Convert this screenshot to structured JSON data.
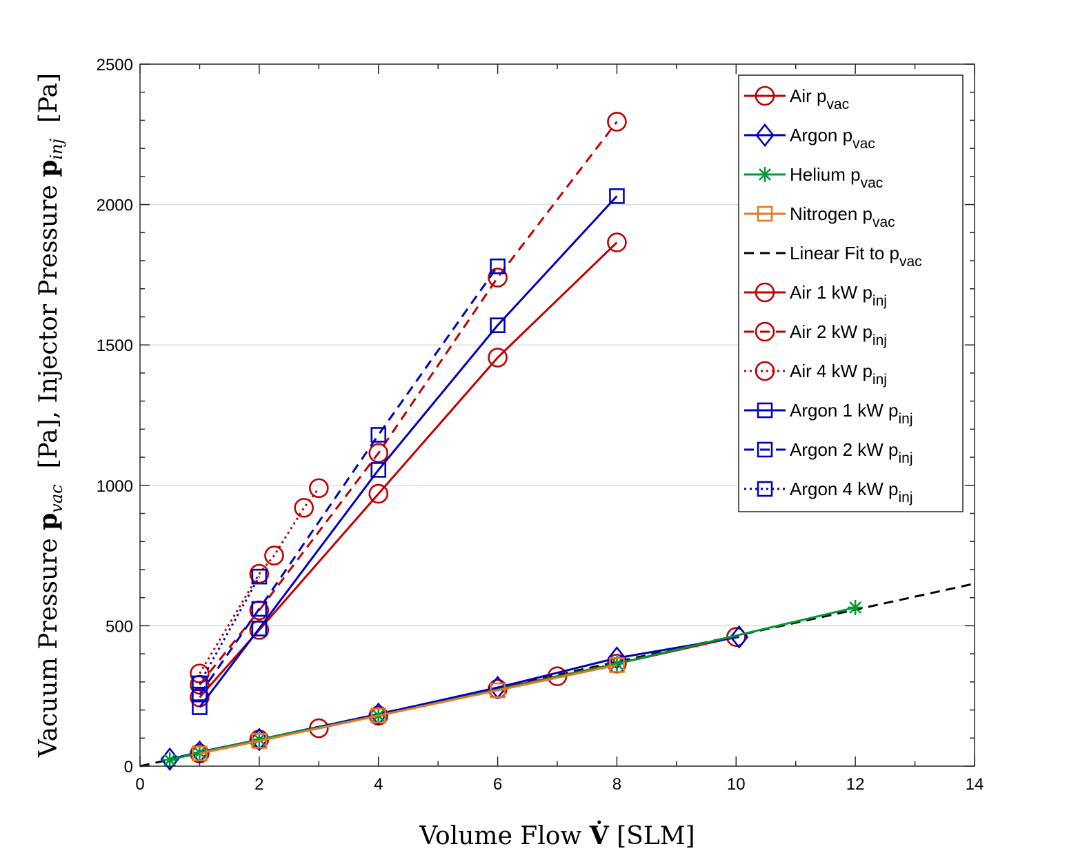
{
  "chart_data": {
    "type": "line",
    "xlabel": "Volume Flow V̇ [SLM]",
    "ylabel": "Vacuum Pressure p_vac [Pa], Injector Pressure p_inj [Pa]",
    "xlim": [
      0,
      14
    ],
    "ylim": [
      0,
      2500
    ],
    "xticks": [
      0,
      2,
      4,
      6,
      8,
      10,
      12,
      14
    ],
    "yticks": [
      0,
      500,
      1000,
      1500,
      2000,
      2500
    ],
    "grid": "horizontal",
    "legend_position": "top-right",
    "series": [
      {
        "name": "Air p",
        "sub": "vac",
        "color": "#c00000",
        "dash": "solid",
        "marker": "circle",
        "x": [
          1,
          2,
          3,
          4,
          6,
          7,
          8,
          10
        ],
        "y": [
          45,
          95,
          135,
          180,
          275,
          320,
          365,
          460
        ]
      },
      {
        "name": "Argon p",
        "sub": "vac",
        "color": "#0000c0",
        "dash": "solid",
        "marker": "diamond",
        "x": [
          0.5,
          1,
          2,
          4,
          6,
          8,
          10.05
        ],
        "y": [
          25,
          50,
          95,
          185,
          280,
          385,
          460
        ]
      },
      {
        "name": "Helium p",
        "sub": "vac",
        "color": "#009933",
        "dash": "solid",
        "marker": "asterisk",
        "x": [
          0.5,
          1,
          2,
          4,
          8,
          12
        ],
        "y": [
          22,
          48,
          95,
          180,
          365,
          565
        ]
      },
      {
        "name": "Nitrogen p",
        "sub": "vac",
        "color": "#e87722",
        "dash": "solid",
        "marker": "square",
        "x": [
          1,
          2,
          4,
          6,
          8
        ],
        "y": [
          45,
          90,
          180,
          270,
          360
        ]
      },
      {
        "name": "Linear Fit to p",
        "sub": "vac",
        "color": "#000000",
        "dash": "dashed",
        "marker": "none",
        "x": [
          0,
          14
        ],
        "y": [
          0,
          650
        ]
      },
      {
        "name": "Air 1 kW p",
        "sub": "inj",
        "color": "#c00000",
        "dash": "solid",
        "marker": "circle",
        "x": [
          1,
          2,
          4,
          6,
          8
        ],
        "y": [
          245,
          485,
          970,
          1455,
          1865
        ]
      },
      {
        "name": "Air 2 kW p",
        "sub": "inj",
        "color": "#c00000",
        "dash": "dashed",
        "marker": "circle",
        "x": [
          1,
          2,
          4,
          6,
          8
        ],
        "y": [
          290,
          555,
          1115,
          1740,
          2295
        ]
      },
      {
        "name": "Air 4 kW p",
        "sub": "inj",
        "color": "#c00000",
        "dash": "dotted",
        "marker": "circle",
        "x": [
          1,
          2,
          2.25,
          2.75,
          3
        ],
        "y": [
          330,
          685,
          750,
          920,
          990
        ]
      },
      {
        "name": "Argon 1 kW p",
        "sub": "inj",
        "color": "#0000c0",
        "dash": "solid",
        "marker": "square",
        "x": [
          1,
          2,
          4,
          6,
          8
        ],
        "y": [
          210,
          490,
          1055,
          1570,
          2030
        ]
      },
      {
        "name": "Argon 2 kW p",
        "sub": "inj",
        "color": "#0000c0",
        "dash": "dashed",
        "marker": "square",
        "x": [
          1,
          2,
          4,
          6
        ],
        "y": [
          255,
          560,
          1180,
          1780
        ]
      },
      {
        "name": "Argon 4 kW p",
        "sub": "inj",
        "color": "#0000c0",
        "dash": "dotted",
        "marker": "square",
        "x": [
          1,
          2
        ],
        "y": [
          295,
          675
        ]
      }
    ]
  }
}
